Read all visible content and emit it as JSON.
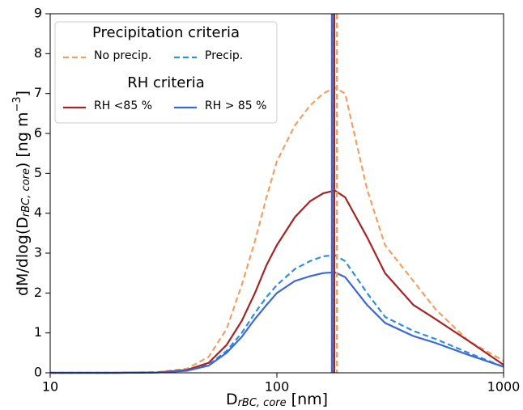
{
  "chart_data": {
    "type": "line",
    "xlabel": [
      "D",
      "rBC, core",
      " [nm]"
    ],
    "ylabel": [
      "dM/dlog(D",
      "rBC, core",
      ") [ng m",
      "−3",
      "]"
    ],
    "xscale": "log",
    "xlim": [
      10,
      1000
    ],
    "xticks": [
      10,
      100,
      1000
    ],
    "ylim": [
      0,
      9
    ],
    "yticks": [
      0,
      1,
      2,
      3,
      4,
      5,
      6,
      7,
      8,
      9
    ],
    "legend_titles": [
      "Precipitation criteria",
      "RH criteria"
    ],
    "legend": "upper left",
    "x": [
      10,
      20,
      30,
      40,
      50,
      60,
      70,
      80,
      90,
      100,
      120,
      140,
      160,
      180,
      200,
      250,
      300,
      400,
      500,
      700,
      1000
    ],
    "series": [
      {
        "name": "No precip.",
        "color": "#f0a062",
        "dash": true,
        "values": [
          0,
          0,
          0.02,
          0.1,
          0.4,
          1.1,
          2.2,
          3.3,
          4.4,
          5.3,
          6.2,
          6.7,
          7.0,
          7.15,
          7.0,
          4.6,
          3.2,
          2.3,
          1.6,
          0.8,
          0.3
        ]
      },
      {
        "name": "Precip.",
        "color": "#2b8fe0",
        "dash": true,
        "values": [
          0,
          0,
          0.01,
          0.06,
          0.2,
          0.55,
          1.0,
          1.5,
          1.9,
          2.2,
          2.6,
          2.8,
          2.92,
          2.95,
          2.8,
          2.0,
          1.4,
          1.05,
          0.85,
          0.5,
          0.15
        ]
      },
      {
        "name": "RH <85 %",
        "color": "#a52525",
        "dash": false,
        "values": [
          0,
          0,
          0.01,
          0.07,
          0.25,
          0.7,
          1.3,
          2.0,
          2.7,
          3.2,
          3.9,
          4.3,
          4.5,
          4.57,
          4.4,
          3.4,
          2.5,
          1.7,
          1.35,
          0.8,
          0.2
        ]
      },
      {
        "name": "RH > 85 %",
        "color": "#3a68d8",
        "dash": false,
        "values": [
          0,
          0,
          0.01,
          0.05,
          0.18,
          0.5,
          0.9,
          1.35,
          1.7,
          2.0,
          2.3,
          2.42,
          2.5,
          2.52,
          2.4,
          1.7,
          1.25,
          0.92,
          0.75,
          0.45,
          0.15
        ]
      }
    ],
    "vlines": [
      {
        "x": 184,
        "color": "#f0a062",
        "dash": true
      },
      {
        "x": 179,
        "color": "#a52525",
        "dash": false
      },
      {
        "x": 176,
        "color": "#2b8fe0",
        "dash": true
      },
      {
        "x": 175,
        "color": "#3a68d8",
        "dash": false
      }
    ]
  }
}
